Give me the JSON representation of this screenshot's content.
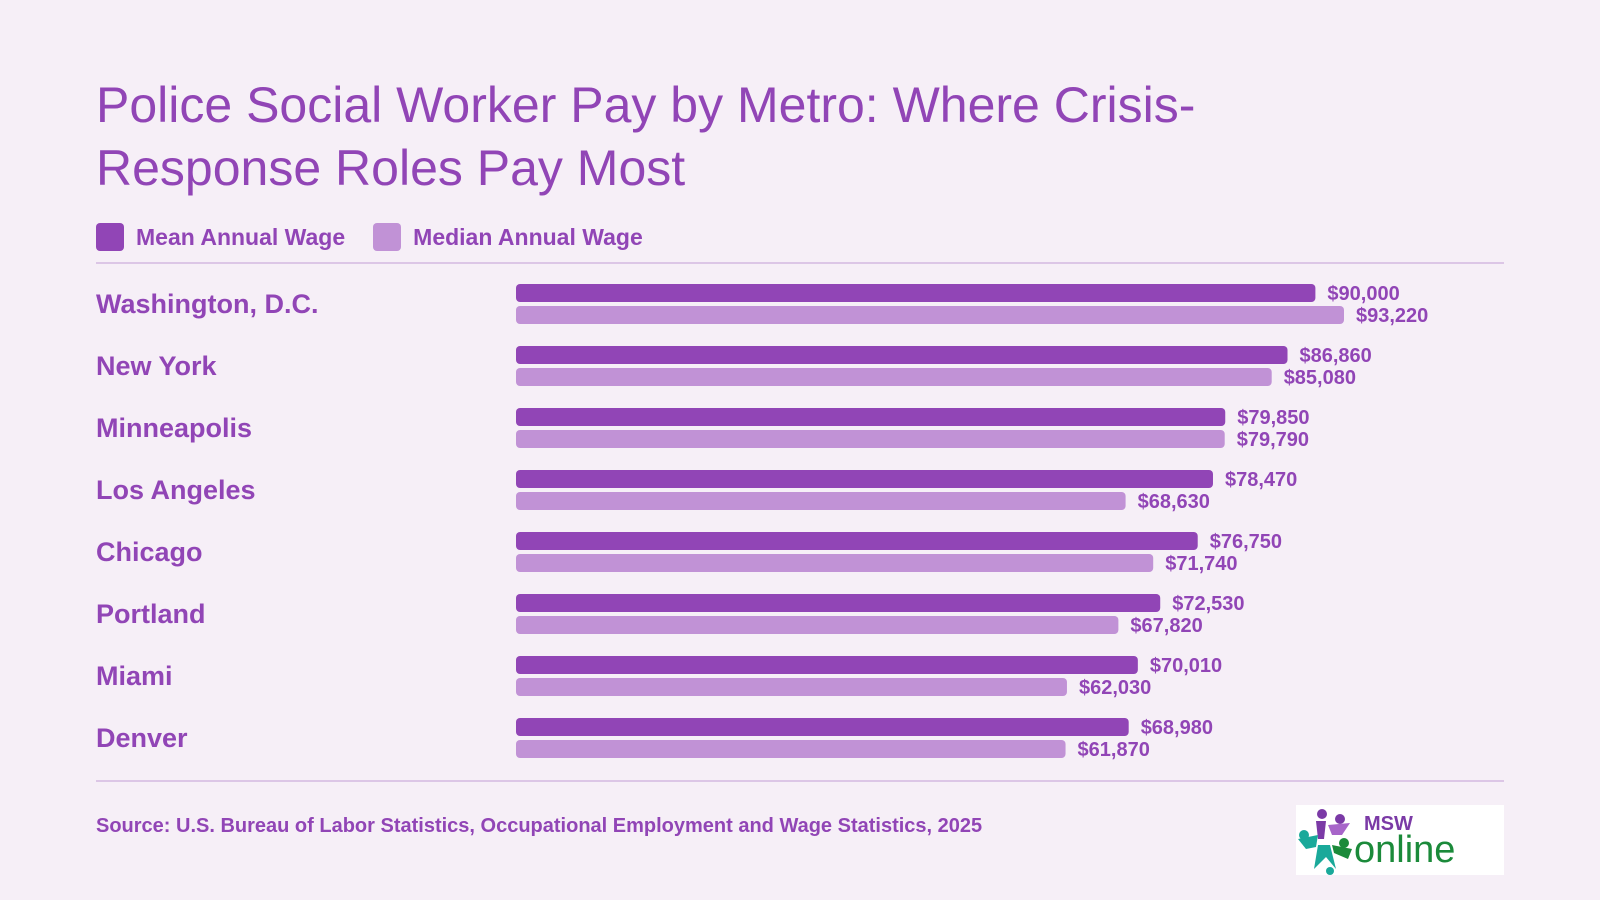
{
  "title": "Police Social Worker Pay by Metro: Where Crisis-Response Roles Pay Most",
  "legend": {
    "mean_label": "Mean Annual Wage",
    "median_label": "Median Annual Wage"
  },
  "colors": {
    "mean": "#9145b6",
    "median": "#c192d6",
    "text": "#9145b6",
    "background": "#f6eff7",
    "logo_green": "#1b8a3a",
    "logo_purple": "#7b3aa6",
    "logo_teal": "#1aa99a"
  },
  "source": "Source: U.S. Bureau of Labor Statistics, Occupational Employment and Wage Statistics, 2025",
  "logo": {
    "top_text": "MSW",
    "bottom_text": "online"
  },
  "chart_data": {
    "type": "bar",
    "orientation": "horizontal",
    "categories": [
      "Washington, D.C.",
      "New York",
      "Minneapolis",
      "Los Angeles",
      "Chicago",
      "Portland",
      "Miami",
      "Denver"
    ],
    "series": [
      {
        "name": "Mean Annual Wage",
        "values": [
          90000,
          86860,
          79850,
          78470,
          76750,
          72530,
          70010,
          68980
        ],
        "labels": [
          "$90,000",
          "$86,860",
          "$79,850",
          "$78,470",
          "$76,750",
          "$72,530",
          "$70,010",
          "$68,980"
        ]
      },
      {
        "name": "Median Annual Wage",
        "values": [
          93220,
          85080,
          79790,
          68630,
          71740,
          67820,
          62030,
          61870
        ],
        "labels": [
          "$93,220",
          "$85,080",
          "$79,790",
          "$68,630",
          "$71,740",
          "$67,820",
          "$62,030",
          "$61,870"
        ]
      }
    ],
    "xlim": [
      0,
      100000
    ],
    "legend_position": "top-left",
    "grid": false
  }
}
